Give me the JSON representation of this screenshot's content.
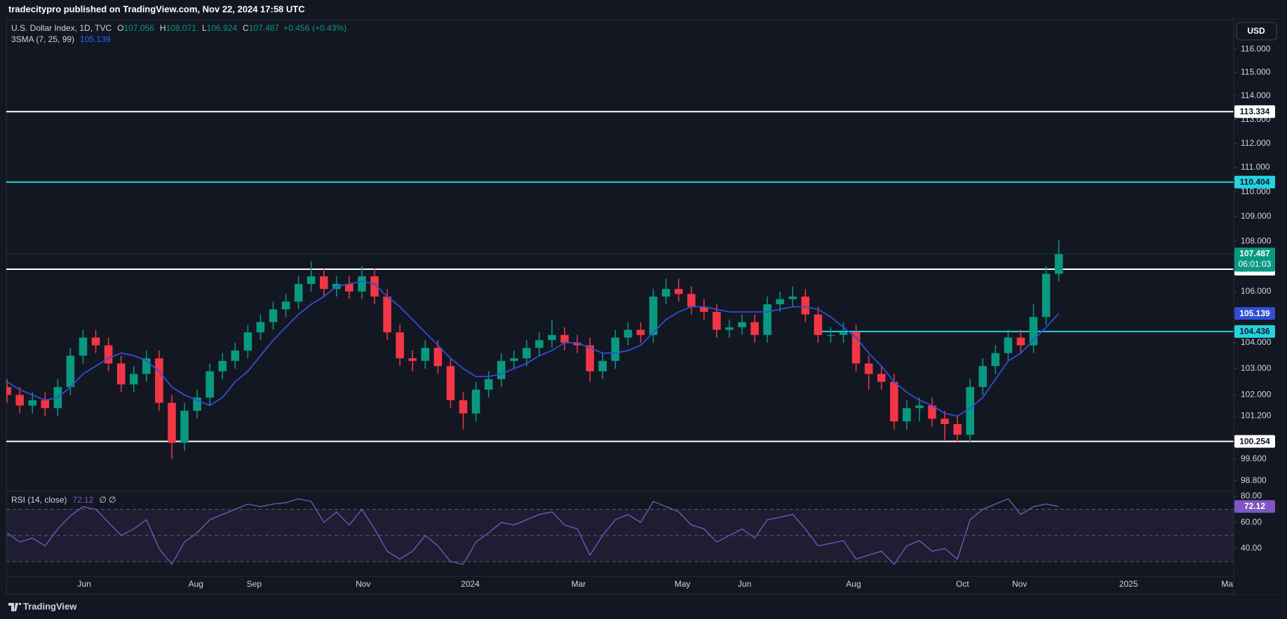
{
  "header": {
    "text": "tradecitypro published on TradingView.com, Nov 22, 2024 17:58 UTC"
  },
  "footer": {
    "brand": "TradingView"
  },
  "currency": "USD",
  "chart_data": [
    {
      "type": "candlestick",
      "title": "U.S. Dollar Index, 1D, TVC",
      "legend": [
        {
          "label": "O",
          "value": 107.056
        },
        {
          "label": "H",
          "value": 108.071
        },
        {
          "label": "L",
          "value": 106.924
        },
        {
          "label": "C",
          "value": 107.487
        }
      ],
      "change": {
        "value": 0.456,
        "label": "+0.456"
      },
      "change_pct": {
        "value": 0.43,
        "label": "(+0.43%)"
      },
      "open": [
        102.3,
        102.0,
        101.6,
        101.8,
        101.5,
        102.3,
        103.5,
        104.2,
        103.9,
        103.2,
        102.4,
        102.8,
        103.4,
        101.7,
        100.2,
        101.4,
        101.9,
        102.9,
        103.3,
        103.7,
        104.4,
        104.8,
        105.3,
        105.6,
        106.3,
        106.6,
        106.1,
        106.3,
        106.0,
        106.6,
        105.8,
        104.4,
        103.4,
        103.3,
        103.8,
        103.1,
        101.8,
        101.3,
        102.2,
        102.6,
        103.3,
        103.4,
        103.8,
        104.1,
        104.3,
        104.0,
        103.9,
        102.9,
        103.3,
        104.2,
        104.5,
        104.3,
        105.8,
        106.1,
        105.9,
        105.4,
        105.2,
        104.5,
        104.6,
        104.8,
        104.3,
        105.5,
        105.7,
        105.8,
        105.1,
        104.3,
        104.3,
        104.4,
        103.2,
        102.8,
        102.5,
        101.0,
        101.5,
        101.6,
        101.1,
        100.9,
        100.5,
        102.3,
        103.1,
        103.6,
        104.2,
        103.9,
        105.0,
        106.7
      ],
      "high": [
        102.6,
        102.3,
        102.1,
        102.1,
        102.6,
        103.8,
        104.5,
        104.5,
        104.2,
        103.5,
        103.1,
        103.7,
        103.7,
        102.0,
        101.7,
        102.2,
        103.2,
        103.6,
        104.0,
        104.7,
        105.1,
        105.6,
        105.9,
        106.6,
        107.2,
        106.9,
        106.6,
        106.6,
        107.0,
        106.9,
        106.1,
        104.7,
        103.7,
        104.1,
        104.1,
        103.4,
        102.1,
        102.5,
        102.9,
        103.6,
        103.7,
        104.1,
        104.4,
        104.9,
        104.6,
        104.3,
        104.2,
        103.6,
        104.5,
        104.8,
        104.8,
        106.1,
        106.5,
        106.5,
        106.2,
        105.7,
        105.5,
        104.9,
        105.1,
        105.1,
        105.8,
        106.0,
        106.2,
        106.1,
        105.4,
        104.6,
        104.8,
        104.7,
        103.5,
        103.1,
        102.8,
        101.8,
        101.9,
        101.9,
        101.4,
        101.2,
        102.6,
        103.4,
        103.9,
        104.5,
        104.5,
        105.5,
        107.0,
        108.071
      ],
      "low": [
        101.7,
        101.3,
        101.3,
        101.2,
        101.2,
        102.0,
        103.2,
        103.6,
        102.9,
        102.1,
        102.1,
        102.5,
        101.4,
        99.6,
        99.9,
        101.1,
        101.6,
        102.6,
        103.0,
        103.4,
        104.1,
        104.5,
        105.0,
        105.3,
        106.0,
        105.8,
        105.8,
        105.7,
        105.7,
        105.5,
        104.1,
        103.1,
        102.9,
        103.0,
        102.8,
        101.5,
        100.7,
        101.0,
        101.9,
        102.3,
        103.0,
        103.1,
        103.5,
        103.8,
        103.7,
        103.6,
        102.5,
        102.6,
        103.0,
        103.9,
        104.0,
        104.0,
        105.5,
        105.6,
        105.1,
        104.9,
        104.2,
        104.2,
        104.3,
        104.0,
        104.0,
        105.2,
        105.4,
        104.8,
        104.0,
        104.0,
        104.0,
        102.9,
        102.2,
        102.2,
        100.7,
        100.7,
        101.0,
        100.8,
        100.3,
        100.2,
        100.2,
        102.0,
        102.8,
        103.3,
        103.6,
        103.6,
        104.7,
        106.4
      ],
      "close": [
        102.0,
        101.6,
        101.8,
        101.5,
        102.3,
        103.5,
        104.2,
        103.9,
        103.2,
        102.4,
        102.8,
        103.4,
        101.7,
        100.2,
        101.4,
        101.9,
        102.9,
        103.3,
        103.7,
        104.4,
        104.8,
        105.3,
        105.6,
        106.3,
        106.6,
        106.1,
        106.3,
        106.0,
        106.6,
        105.8,
        104.4,
        103.4,
        103.3,
        103.8,
        103.1,
        101.8,
        101.3,
        102.2,
        102.6,
        103.3,
        103.4,
        103.8,
        104.1,
        104.3,
        104.0,
        103.9,
        102.9,
        103.3,
        104.2,
        104.5,
        104.3,
        105.8,
        106.1,
        105.9,
        105.4,
        105.2,
        104.5,
        104.6,
        104.8,
        104.3,
        105.5,
        105.7,
        105.8,
        105.1,
        104.3,
        104.3,
        104.4,
        103.2,
        102.8,
        102.5,
        101.0,
        101.5,
        101.6,
        101.1,
        100.9,
        100.5,
        102.3,
        103.1,
        103.6,
        104.2,
        103.9,
        105.0,
        106.7,
        107.487
      ],
      "up_color": "#089981",
      "down_color": "#f23645",
      "overlays": [
        {
          "name": "3SMA (7, 25, 99)",
          "color": "#2f4fd6",
          "values": [
            102.5,
            102.2,
            102.0,
            101.8,
            101.9,
            102.3,
            102.8,
            103.1,
            103.4,
            103.6,
            103.5,
            103.3,
            102.9,
            102.3,
            102.0,
            101.8,
            101.6,
            101.9,
            102.5,
            102.9,
            103.5,
            104.1,
            104.6,
            105.1,
            105.5,
            105.8,
            106.2,
            106.3,
            106.4,
            106.3,
            105.8,
            105.4,
            104.9,
            104.4,
            103.9,
            103.4,
            103.0,
            102.7,
            102.7,
            102.8,
            103.0,
            103.2,
            103.5,
            103.7,
            104.0,
            104.0,
            103.8,
            103.6,
            103.6,
            103.7,
            103.9,
            104.4,
            104.9,
            105.2,
            105.4,
            105.4,
            105.3,
            105.2,
            105.2,
            105.2,
            105.2,
            105.3,
            105.4,
            105.4,
            105.3,
            105.0,
            104.6,
            104.2,
            103.6,
            103.1,
            102.5,
            102.1,
            101.8,
            101.6,
            101.3,
            101.2,
            101.5,
            101.9,
            102.6,
            103.3,
            103.6,
            104.1,
            104.6,
            105.139
          ]
        }
      ],
      "levels": [
        {
          "value": 113.334,
          "color": "#ffffff"
        },
        {
          "value": 110.404,
          "color": "#22d3e0"
        },
        {
          "value": 106.884,
          "color": "#ffffff"
        },
        {
          "value": 104.436,
          "color": "#22d3e0",
          "from": 63.9
        },
        {
          "value": 100.254,
          "color": "#ffffff"
        }
      ],
      "countdown": "06:01:03",
      "log_scale": true,
      "grid": false,
      "ylim": [
        98.43,
        117.28
      ],
      "yticks": [
        {
          "value": 116,
          "label": "116.000"
        },
        {
          "value": 115,
          "label": "115.000"
        },
        {
          "value": 114,
          "label": "114.000"
        },
        {
          "value": 113,
          "label": "113.000"
        },
        {
          "value": 112,
          "label": "112.000"
        },
        {
          "value": 111,
          "label": "111.000"
        },
        {
          "value": 110,
          "label": "110.000"
        },
        {
          "value": 109,
          "label": "109.000"
        },
        {
          "value": 108,
          "label": "108.000"
        },
        {
          "value": 106,
          "label": "106.000"
        },
        {
          "value": 104,
          "label": "104.000"
        },
        {
          "value": 103,
          "label": "103.000"
        },
        {
          "value": 102,
          "label": "102.000"
        },
        {
          "value": 101.2,
          "label": "101.200"
        },
        {
          "value": 99.6,
          "label": "99.600"
        },
        {
          "value": 98.8,
          "label": "98.800"
        }
      ],
      "xlim": [
        -0.06,
        96.8
      ],
      "xticks": [
        {
          "value": 6.09,
          "label": "Jun"
        },
        {
          "value": 14.9,
          "label": "Aug"
        },
        {
          "value": 19.5,
          "label": "Sep"
        },
        {
          "value": 28.1,
          "label": "Nov"
        },
        {
          "value": 36.55,
          "label": "2024"
        },
        {
          "value": 45.1,
          "label": "Mar"
        },
        {
          "value": 53.3,
          "label": "May"
        },
        {
          "value": 58.2,
          "label": "Jun"
        },
        {
          "value": 66.8,
          "label": "Aug"
        },
        {
          "value": 75.4,
          "label": "Oct"
        },
        {
          "value": 79.9,
          "label": "Nov"
        },
        {
          "value": 88.5,
          "label": "2025"
        },
        {
          "value": 96.4,
          "label": "Mar"
        }
      ]
    },
    {
      "type": "line",
      "name": "RSI (14, close)",
      "flags": "∅ ∅",
      "color": "#7e57c2",
      "values": [
        52,
        45,
        48,
        42,
        55,
        65,
        72,
        70,
        60,
        50,
        55,
        62,
        40,
        28,
        45,
        52,
        62,
        66,
        70,
        74,
        72,
        74,
        75,
        78,
        76,
        60,
        68,
        58,
        70,
        55,
        38,
        32,
        38,
        50,
        42,
        30,
        28,
        45,
        52,
        60,
        58,
        62,
        66,
        68,
        58,
        55,
        35,
        50,
        62,
        66,
        60,
        76,
        72,
        68,
        58,
        55,
        45,
        50,
        55,
        48,
        62,
        64,
        66,
        55,
        42,
        44,
        46,
        32,
        35,
        38,
        28,
        42,
        46,
        38,
        40,
        32,
        62,
        70,
        74,
        78,
        66,
        72,
        74,
        72.12
      ],
      "levels": [
        70,
        50,
        30
      ],
      "ylim": [
        19.4,
        83.1
      ],
      "yticks": [
        {
          "value": 80,
          "label": "80.00"
        },
        {
          "value": 60,
          "label": "60.00"
        },
        {
          "value": 40,
          "label": "40.00"
        }
      ]
    }
  ]
}
